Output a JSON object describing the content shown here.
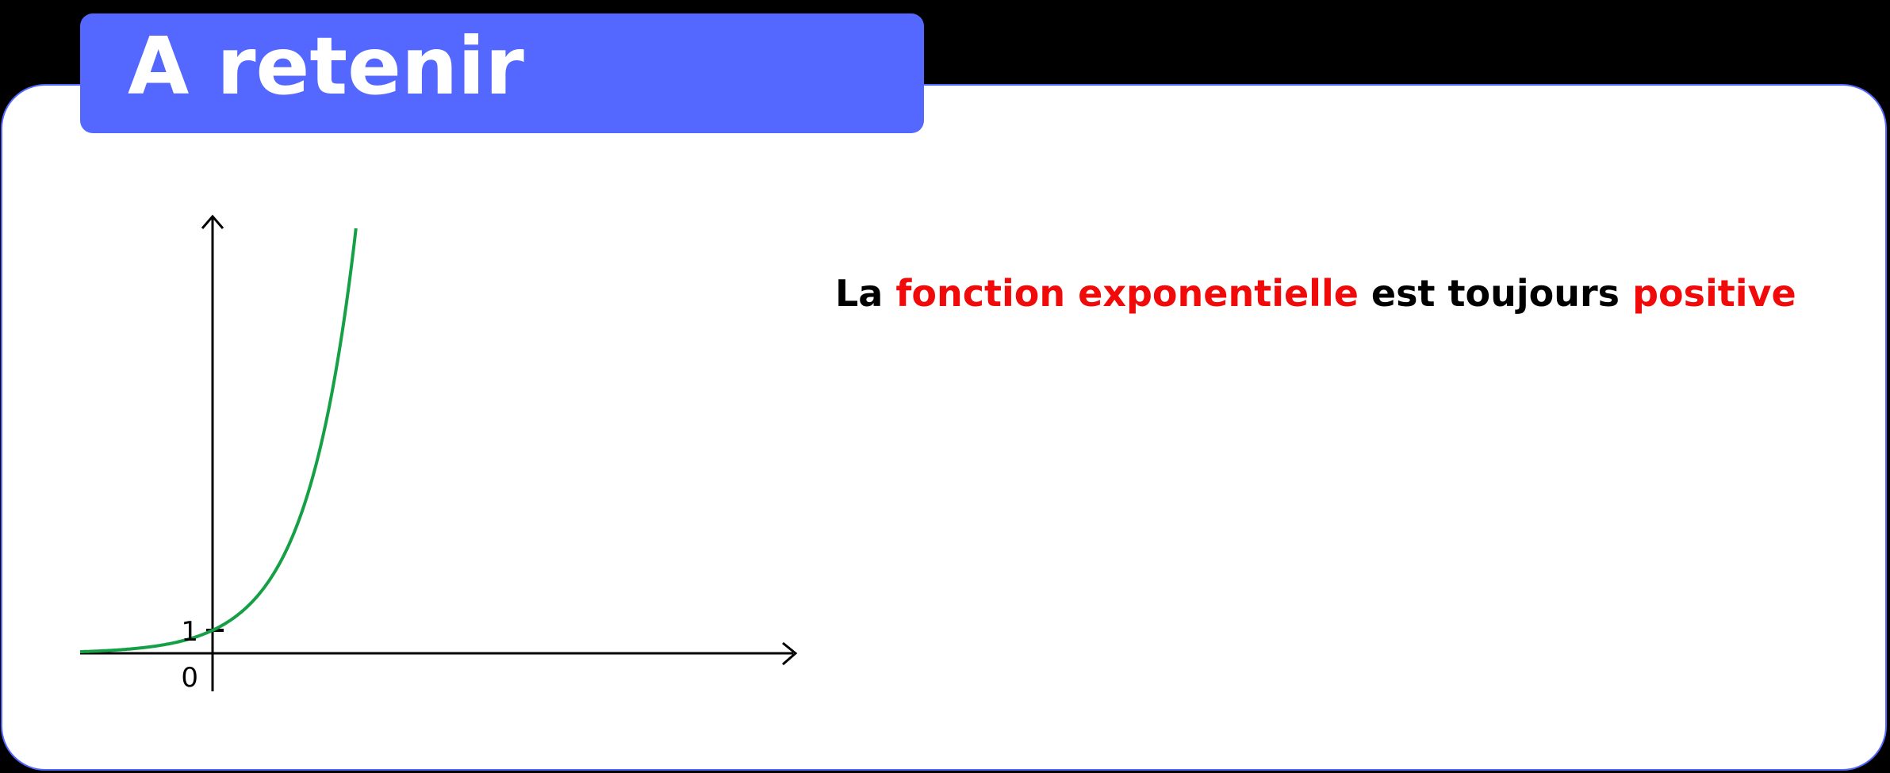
{
  "title": "A retenir",
  "statement": {
    "part1": "La ",
    "part2": "fonction exponentielle",
    "part3": " est toujours ",
    "part4": "positive"
  },
  "graph": {
    "y_tick_label": "1",
    "origin_label": "0"
  },
  "colors": {
    "accent": "#5468ff",
    "curve": "#16a046",
    "highlight": "#f00a0a",
    "axis": "#000000"
  }
}
